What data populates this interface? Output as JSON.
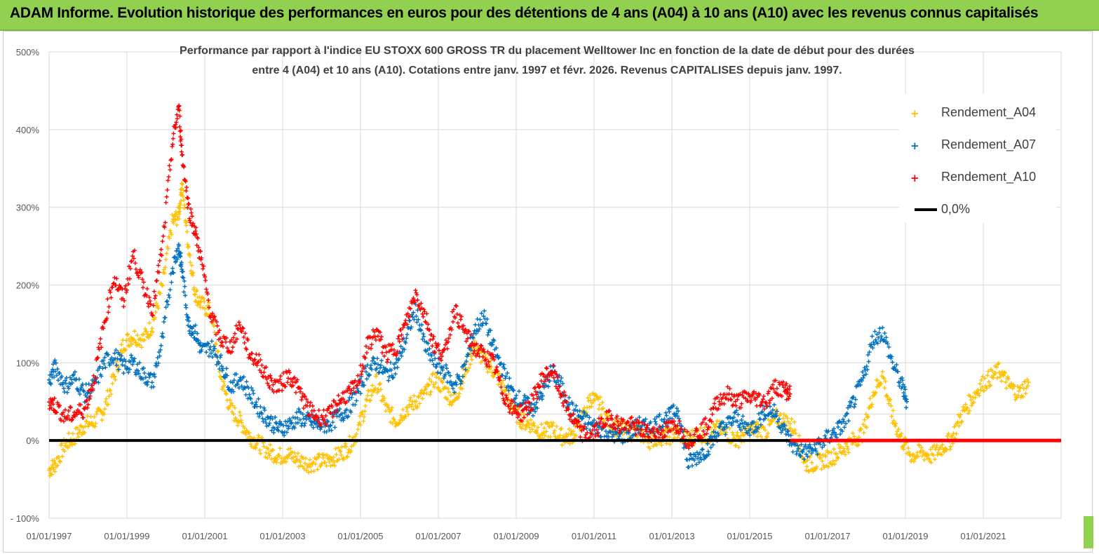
{
  "banner": {
    "title": "ADAM Informe. Evolution historique des performances en euros pour des détentions de 4 ans (A04) à 10 ans (A10) avec les revenus connus capitalisés",
    "color": "#92d050"
  },
  "chart_data": {
    "type": "scatter",
    "title_line1": "Performance par rapport à l'indice EU STOXX 600 GROSS TR  du placement Welltower Inc en fonction de la date de début pour des durées",
    "title_line2": "entre 4 (A04) et 10 ans (A10).  Cotations entre janv. 1997 et févr. 2026. Revenus CAPITALISES depuis janv. 1997.",
    "xlabel": "",
    "ylabel": "",
    "ylim": [
      -100,
      500
    ],
    "xlim": [
      "1997-01-01",
      "2023-01-01"
    ],
    "y_ticks": [
      "500%",
      "400%",
      "300%",
      "200%",
      "100%",
      "0%",
      "- 100%"
    ],
    "x_ticks": [
      "01/01/1997",
      "01/01/1999",
      "01/01/2001",
      "01/01/2003",
      "01/01/2005",
      "01/01/2007",
      "01/01/2009",
      "01/01/2011",
      "01/01/2013",
      "01/01/2015",
      "01/01/2017",
      "01/01/2019",
      "01/01/2021"
    ],
    "grid": true,
    "legend_position": "top-right",
    "series": [
      {
        "name": "Rendement_A04",
        "color": "#ffc000",
        "marker": "+",
        "x": [
          "1997-01-01",
          "1997-03-01",
          "1997-06-01",
          "1997-09-01",
          "1997-12-01",
          "1998-03-01",
          "1998-06-01",
          "1998-09-01",
          "1998-12-01",
          "1999-03-01",
          "1999-06-01",
          "1999-09-01",
          "1999-12-01",
          "2000-03-01",
          "2000-05-01",
          "2000-06-01",
          "2000-08-01",
          "2000-10-01",
          "2000-12-01",
          "2001-03-01",
          "2001-06-01",
          "2001-09-01",
          "2001-12-01",
          "2002-03-01",
          "2002-06-01",
          "2002-09-01",
          "2002-12-01",
          "2003-03-01",
          "2003-06-01",
          "2003-09-01",
          "2003-12-01",
          "2004-03-01",
          "2004-06-01",
          "2004-09-01",
          "2004-12-01",
          "2005-03-01",
          "2005-06-01",
          "2005-09-01",
          "2005-12-01",
          "2006-03-01",
          "2006-06-01",
          "2006-09-01",
          "2006-12-01",
          "2007-03-01",
          "2007-06-01",
          "2007-09-01",
          "2007-12-01",
          "2008-03-01",
          "2008-06-01",
          "2008-09-01",
          "2008-12-01",
          "2009-03-01",
          "2009-06-01",
          "2009-09-01",
          "2009-12-01",
          "2010-03-01",
          "2010-06-01",
          "2010-09-01",
          "2010-12-01",
          "2011-03-01",
          "2011-06-01",
          "2011-09-01",
          "2011-12-01",
          "2012-03-01",
          "2012-06-01",
          "2012-09-01",
          "2012-12-01",
          "2013-03-01",
          "2013-06-01",
          "2013-09-01",
          "2013-12-01",
          "2014-03-01",
          "2014-06-01",
          "2014-09-01",
          "2014-12-01",
          "2015-03-01",
          "2015-06-01",
          "2015-09-01",
          "2015-12-01",
          "2016-03-01",
          "2016-06-01",
          "2016-09-01",
          "2016-12-01",
          "2017-03-01",
          "2017-06-01",
          "2017-09-01",
          "2017-12-01",
          "2018-03-01",
          "2018-06-01",
          "2018-09-01",
          "2018-12-01",
          "2019-03-01",
          "2019-06-01",
          "2019-09-01",
          "2019-12-01",
          "2020-03-01",
          "2020-06-01",
          "2020-09-01",
          "2020-12-01",
          "2021-03-01",
          "2021-06-01",
          "2021-09-01",
          "2021-12-01",
          "2022-03-01"
        ],
        "y": [
          -38,
          -30,
          -5,
          5,
          20,
          25,
          40,
          80,
          125,
          135,
          130,
          150,
          200,
          280,
          290,
          330,
          250,
          190,
          175,
          165,
          80,
          40,
          25,
          5,
          -5,
          -15,
          -20,
          -18,
          -25,
          -30,
          -28,
          -25,
          -20,
          -10,
          10,
          50,
          75,
          40,
          25,
          40,
          50,
          60,
          80,
          65,
          50,
          85,
          120,
          105,
          90,
          70,
          40,
          25,
          20,
          10,
          15,
          5,
          5,
          25,
          55,
          45,
          20,
          15,
          10,
          10,
          0,
          5,
          5,
          10,
          0,
          10,
          5,
          15,
          10,
          0,
          10,
          15,
          10,
          30,
          25,
          15,
          -30,
          -30,
          -25,
          -20,
          -10,
          0,
          10,
          60,
          85,
          30,
          0,
          -20,
          -15,
          -20,
          -10,
          0,
          30,
          50,
          70,
          80,
          90,
          70,
          60,
          75
        ]
      },
      {
        "name": "Rendement_A07",
        "color": "#0070c0",
        "marker": "+",
        "x": [
          "1997-01-01",
          "1997-03-01",
          "1997-06-01",
          "1997-09-01",
          "1997-12-01",
          "1998-03-01",
          "1998-06-01",
          "1998-09-01",
          "1998-12-01",
          "1999-03-01",
          "1999-06-01",
          "1999-09-01",
          "1999-12-01",
          "2000-03-01",
          "2000-05-01",
          "2000-06-01",
          "2000-08-01",
          "2000-10-01",
          "2000-12-01",
          "2001-03-01",
          "2001-06-01",
          "2001-09-01",
          "2001-12-01",
          "2002-03-01",
          "2002-06-01",
          "2002-09-01",
          "2002-12-01",
          "2003-03-01",
          "2003-06-01",
          "2003-09-01",
          "2003-12-01",
          "2004-03-01",
          "2004-06-01",
          "2004-09-01",
          "2004-12-01",
          "2005-03-01",
          "2005-06-01",
          "2005-09-01",
          "2005-12-01",
          "2006-03-01",
          "2006-06-01",
          "2006-09-01",
          "2006-12-01",
          "2007-03-01",
          "2007-06-01",
          "2007-09-01",
          "2007-12-01",
          "2008-03-01",
          "2008-06-01",
          "2008-09-01",
          "2008-12-01",
          "2009-03-01",
          "2009-06-01",
          "2009-09-01",
          "2009-12-01",
          "2010-03-01",
          "2010-06-01",
          "2010-09-01",
          "2010-12-01",
          "2011-03-01",
          "2011-06-01",
          "2011-09-01",
          "2011-12-01",
          "2012-03-01",
          "2012-06-01",
          "2012-09-01",
          "2012-12-01",
          "2013-03-01",
          "2013-06-01",
          "2013-09-01",
          "2013-12-01",
          "2014-03-01",
          "2014-06-01",
          "2014-09-01",
          "2014-12-01",
          "2015-03-01",
          "2015-06-01",
          "2015-09-01",
          "2015-12-01",
          "2016-03-01",
          "2016-06-01",
          "2016-09-01",
          "2016-12-01",
          "2017-03-01",
          "2017-06-01",
          "2017-09-01",
          "2017-12-01",
          "2018-03-01",
          "2018-06-01",
          "2018-09-01",
          "2018-12-01",
          "2019-01-15"
        ],
        "y": [
          75,
          95,
          70,
          80,
          60,
          70,
          100,
          110,
          95,
          100,
          85,
          75,
          130,
          220,
          250,
          220,
          150,
          140,
          115,
          120,
          100,
          70,
          80,
          60,
          40,
          25,
          15,
          20,
          30,
          25,
          20,
          20,
          30,
          40,
          60,
          90,
          100,
          85,
          95,
          130,
          170,
          120,
          100,
          90,
          70,
          90,
          140,
          160,
          120,
          90,
          60,
          50,
          40,
          60,
          90,
          70,
          40,
          30,
          20,
          15,
          10,
          5,
          10,
          20,
          15,
          25,
          30,
          40,
          -30,
          -20,
          -10,
          10,
          20,
          30,
          15,
          20,
          40,
          35,
          10,
          -10,
          -15,
          -10,
          0,
          10,
          20,
          50,
          80,
          130,
          140,
          100,
          70,
          50
        ]
      },
      {
        "name": "Rendement_A10",
        "color": "#ff0000",
        "marker": "+",
        "x": [
          "1997-01-01",
          "1997-03-01",
          "1997-06-01",
          "1997-09-01",
          "1997-12-01",
          "1998-03-01",
          "1998-06-01",
          "1998-09-01",
          "1998-12-01",
          "1999-03-01",
          "1999-06-01",
          "1999-09-01",
          "1999-12-01",
          "2000-03-01",
          "2000-05-01",
          "2000-06-01",
          "2000-08-01",
          "2000-10-01",
          "2000-12-01",
          "2001-03-01",
          "2001-06-01",
          "2001-09-01",
          "2001-12-01",
          "2002-03-01",
          "2002-06-01",
          "2002-09-01",
          "2002-12-01",
          "2003-03-01",
          "2003-06-01",
          "2003-09-01",
          "2003-12-01",
          "2004-03-01",
          "2004-06-01",
          "2004-09-01",
          "2004-12-01",
          "2005-03-01",
          "2005-06-01",
          "2005-09-01",
          "2005-12-01",
          "2006-03-01",
          "2006-06-01",
          "2006-09-01",
          "2006-12-01",
          "2007-03-01",
          "2007-06-01",
          "2007-09-01",
          "2007-12-01",
          "2008-03-01",
          "2008-06-01",
          "2008-09-01",
          "2008-12-01",
          "2009-03-01",
          "2009-06-01",
          "2009-09-01",
          "2009-12-01",
          "2010-03-01",
          "2010-06-01",
          "2010-09-01",
          "2010-12-01",
          "2011-03-01",
          "2011-06-01",
          "2011-09-01",
          "2011-12-01",
          "2012-03-01",
          "2012-06-01",
          "2012-09-01",
          "2012-12-01",
          "2013-03-01",
          "2013-06-01",
          "2013-09-01",
          "2013-12-01",
          "2014-03-01",
          "2014-06-01",
          "2014-09-01",
          "2014-12-01",
          "2015-03-01",
          "2015-06-01",
          "2015-09-01",
          "2015-12-01",
          "2016-01-15"
        ],
        "y": [
          50,
          45,
          30,
          35,
          40,
          80,
          150,
          210,
          180,
          240,
          200,
          170,
          250,
          380,
          430,
          370,
          300,
          270,
          230,
          160,
          130,
          120,
          150,
          110,
          100,
          75,
          70,
          85,
          65,
          40,
          30,
          30,
          50,
          60,
          70,
          120,
          140,
          110,
          120,
          150,
          190,
          160,
          120,
          110,
          170,
          140,
          120,
          110,
          100,
          60,
          40,
          35,
          50,
          80,
          90,
          60,
          30,
          10,
          5,
          20,
          30,
          20,
          20,
          15,
          10,
          10,
          15,
          20,
          0,
          10,
          20,
          50,
          60,
          50,
          55,
          55,
          50,
          70,
          65,
          60
        ]
      },
      {
        "name": "0,0%",
        "color": "#000000",
        "x": [
          "1997-01-01",
          "2016-01-15"
        ],
        "y": [
          0,
          0
        ]
      }
    ],
    "red_zero_segment": {
      "x": [
        "2016-01-15",
        "2023-01-01"
      ],
      "y": [
        0,
        0
      ],
      "color": "#ff0000"
    }
  }
}
